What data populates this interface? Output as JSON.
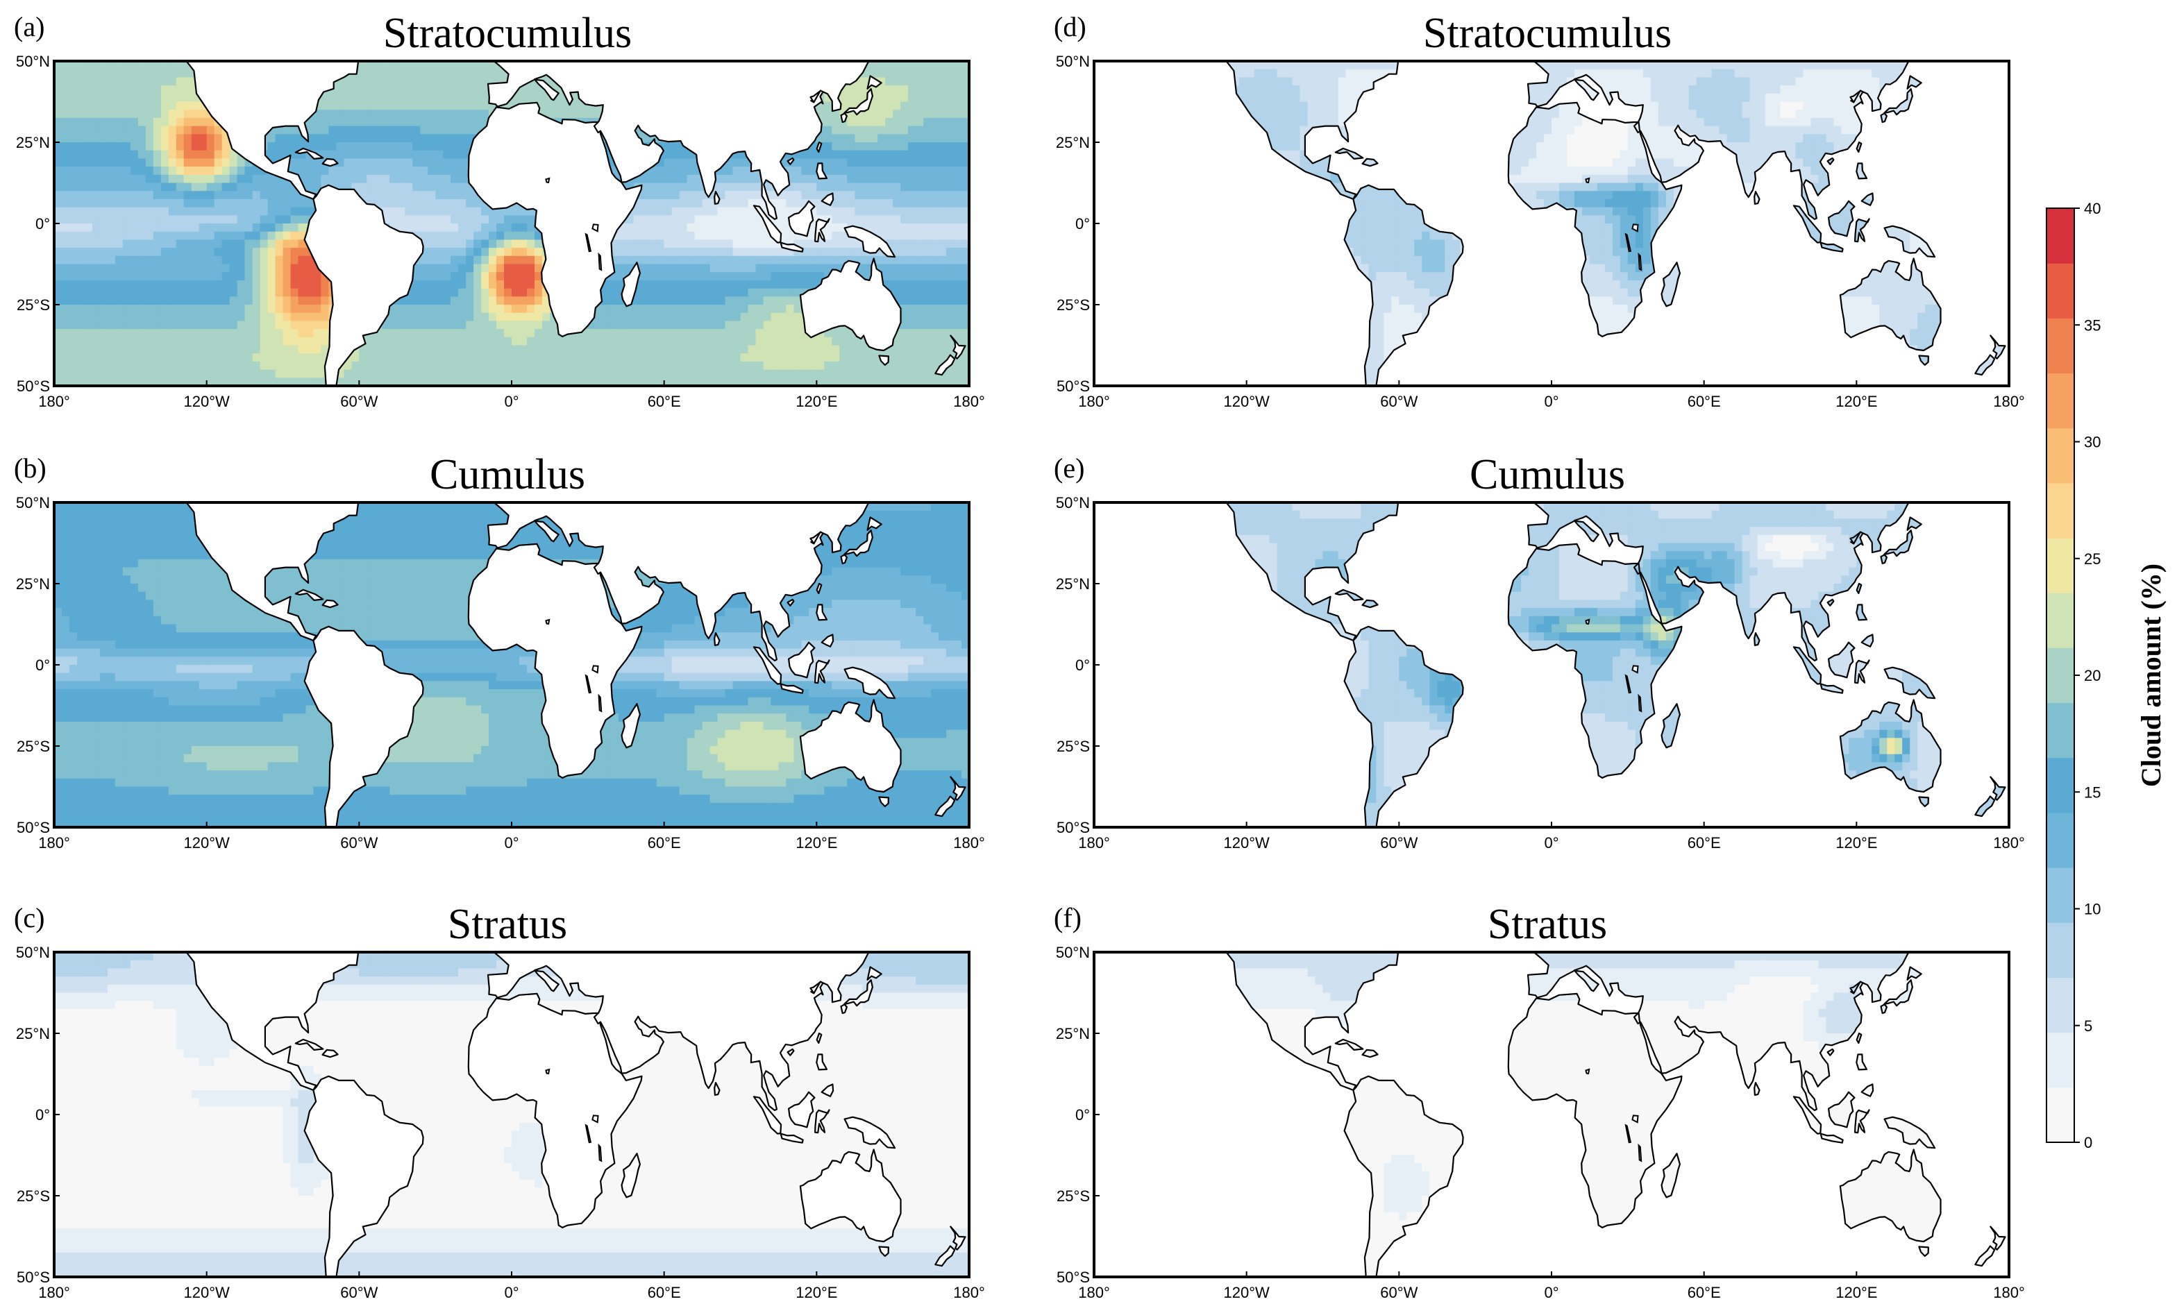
{
  "panels": [
    {
      "id": "a",
      "letter": "(a)",
      "title": "Stratocumulus",
      "domain": "ocean",
      "field": "sc_ocean"
    },
    {
      "id": "b",
      "letter": "(b)",
      "title": "Cumulus",
      "domain": "ocean",
      "field": "cu_ocean"
    },
    {
      "id": "c",
      "letter": "(c)",
      "title": "Stratus",
      "domain": "ocean",
      "field": "st_ocean"
    },
    {
      "id": "d",
      "letter": "(d)",
      "title": "Stratocumulus",
      "domain": "land",
      "field": "sc_land"
    },
    {
      "id": "e",
      "letter": "(e)",
      "title": "Cumulus",
      "domain": "land",
      "field": "cu_land"
    },
    {
      "id": "f",
      "letter": "(f)",
      "title": "Stratus",
      "domain": "land",
      "field": "st_land"
    }
  ],
  "axes": {
    "lon_range": [
      -180,
      180
    ],
    "lat_range": [
      -50,
      50
    ],
    "lon_ticks": [
      {
        "value": -180,
        "label": "180°"
      },
      {
        "value": -120,
        "label": "120°W"
      },
      {
        "value": -60,
        "label": "60°W"
      },
      {
        "value": 0,
        "label": "0°"
      },
      {
        "value": 60,
        "label": "60°E"
      },
      {
        "value": 120,
        "label": "120°E"
      },
      {
        "value": 180,
        "label": "180°"
      }
    ],
    "lat_ticks": [
      {
        "value": 50,
        "label": "50°N"
      },
      {
        "value": 25,
        "label": "25°N"
      },
      {
        "value": 0,
        "label": "0°"
      },
      {
        "value": -25,
        "label": "25°S"
      },
      {
        "value": -50,
        "label": "50°S"
      }
    ]
  },
  "colorbar": {
    "title": "Cloud amount (%)",
    "min": 0,
    "max": 40,
    "step": 2.5,
    "tick_labels": [
      "0",
      "5",
      "10",
      "15",
      "20",
      "25",
      "30",
      "35",
      "40"
    ],
    "colors": [
      "#f7f7f7",
      "#e6eef6",
      "#cfe0f0",
      "#b2d3ea",
      "#8fc4e2",
      "#6fb5da",
      "#5aaad3",
      "#7fbfd0",
      "#a8d3c6",
      "#cfe3b5",
      "#f1e7a5",
      "#f9d58d",
      "#f8be74",
      "#f5a260",
      "#ef8350",
      "#e65c44",
      "#d6303c"
    ]
  },
  "style": {
    "land_color": "#ffffff",
    "ocean_color": "#ffffff",
    "coast_color": "#000000"
  }
}
